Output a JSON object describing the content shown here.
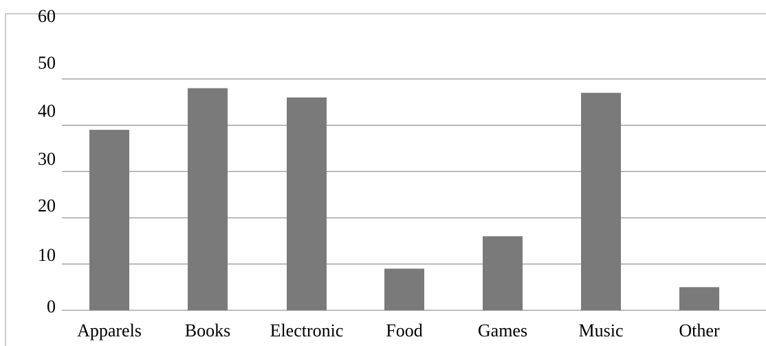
{
  "chart_data": {
    "type": "bar",
    "title": "",
    "xlabel": "",
    "ylabel": "",
    "categories": [
      "Apparels",
      "Books",
      "Electronic",
      "Food",
      "Games",
      "Music",
      "Other"
    ],
    "values": [
      39,
      48,
      46,
      9,
      16,
      47,
      5
    ],
    "ylim": [
      0,
      60
    ],
    "yticks": [
      "0",
      "10",
      "20",
      "30",
      "40",
      "50",
      "60"
    ],
    "grid": true,
    "legend": "none",
    "bar_color": "#7a7a7a"
  }
}
